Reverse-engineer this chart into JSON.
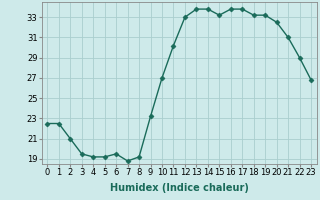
{
  "x": [
    0,
    1,
    2,
    3,
    4,
    5,
    6,
    7,
    8,
    9,
    10,
    11,
    12,
    13,
    14,
    15,
    16,
    17,
    18,
    19,
    20,
    21,
    22,
    23
  ],
  "y": [
    22.5,
    22.5,
    21.0,
    19.5,
    19.2,
    19.2,
    19.5,
    18.8,
    19.2,
    23.2,
    27.0,
    30.2,
    33.0,
    33.8,
    33.8,
    33.2,
    33.8,
    33.8,
    33.2,
    33.2,
    32.5,
    31.0,
    29.0,
    26.8
  ],
  "xlabel": "Humidex (Indice chaleur)",
  "ylabel": "",
  "ylim": [
    18.5,
    34.5
  ],
  "yticks": [
    19,
    21,
    23,
    25,
    27,
    29,
    31,
    33
  ],
  "xlim": [
    -0.5,
    23.5
  ],
  "xticks": [
    0,
    1,
    2,
    3,
    4,
    5,
    6,
    7,
    8,
    9,
    10,
    11,
    12,
    13,
    14,
    15,
    16,
    17,
    18,
    19,
    20,
    21,
    22,
    23
  ],
  "line_color": "#1a6b5a",
  "marker": "D",
  "marker_size": 2.5,
  "bg_color": "#ceeaea",
  "grid_color": "#aacece",
  "label_fontsize": 7,
  "tick_fontsize": 6
}
